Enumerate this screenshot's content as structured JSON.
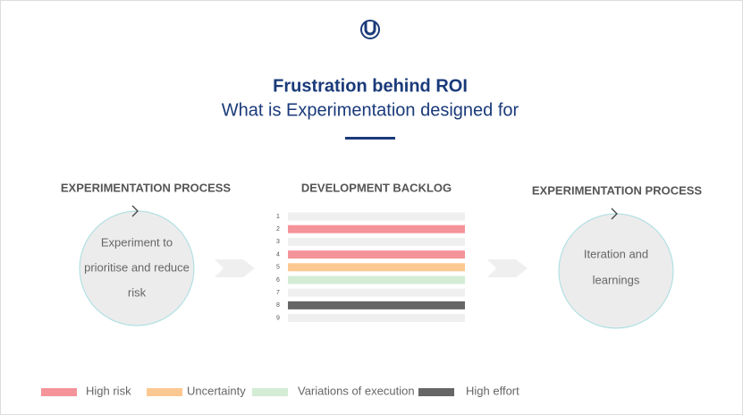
{
  "header": {
    "title": "Frustration behind ROI",
    "subtitle": "What is Experimentation designed for"
  },
  "left": {
    "heading": "EXPERIMENTATION PROCESS",
    "lines": [
      "Experiment to",
      "prioritise and reduce",
      "risk"
    ]
  },
  "backlog": {
    "heading": "DEVELOPMENT BACKLOG",
    "rows": [
      {
        "label": "1",
        "color": "#efefef"
      },
      {
        "label": "2",
        "color": "#f4939a"
      },
      {
        "label": "3",
        "color": "#efefef"
      },
      {
        "label": "4",
        "color": "#f4939a"
      },
      {
        "label": "5",
        "color": "#fcc892"
      },
      {
        "label": "6",
        "color": "#d4ecd4"
      },
      {
        "label": "7",
        "color": "#efefef"
      },
      {
        "label": "8",
        "color": "#666666"
      },
      {
        "label": "9",
        "color": "#efefef"
      }
    ]
  },
  "right": {
    "heading": "EXPERIMENTATION PROCESS",
    "lines": [
      "Iteration and",
      "learnings"
    ]
  },
  "legend": [
    {
      "label": "High risk",
      "color": "#f4939a"
    },
    {
      "label": "Uncertainty",
      "color": "#fcc892"
    },
    {
      "label": "Variations of execution",
      "color": "#d4ecd4"
    },
    {
      "label": "High effort",
      "color": "#666666"
    }
  ]
}
